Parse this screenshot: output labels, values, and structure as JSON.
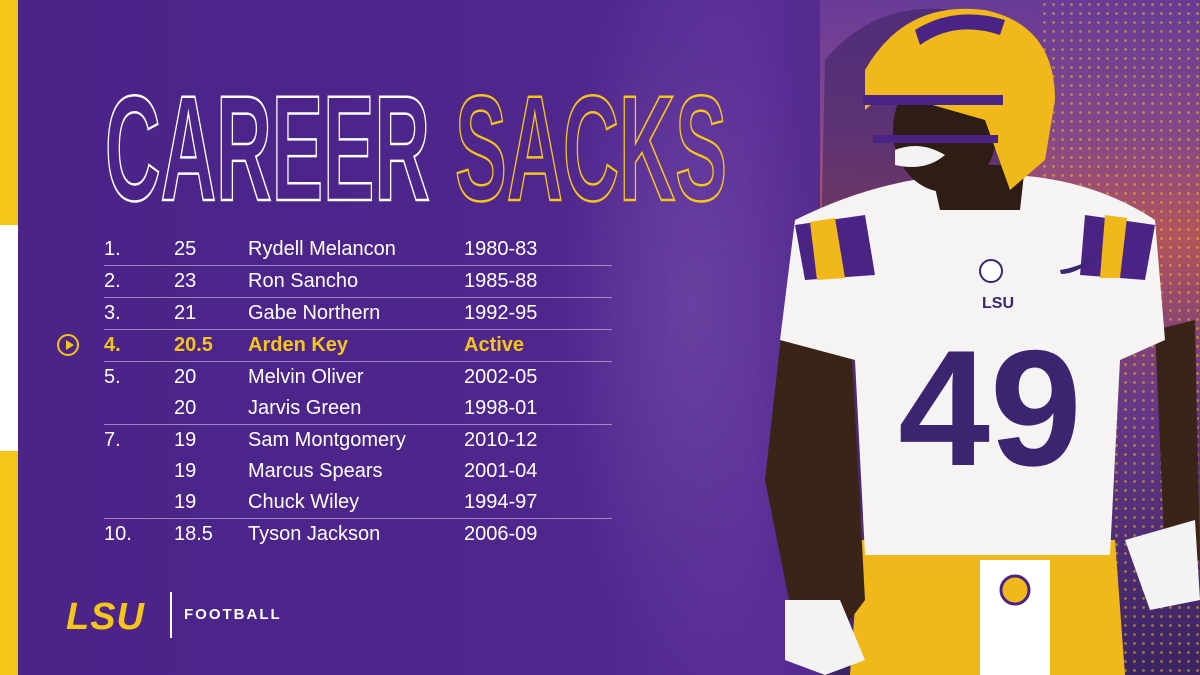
{
  "title": {
    "word1": "CAREER",
    "word2": "SACKS"
  },
  "colors": {
    "purple": "#4b2488",
    "gold": "#f5c518",
    "white": "#ffffff"
  },
  "rows": [
    {
      "rank": "1.",
      "sacks": "25",
      "name": "Rydell Melancon",
      "years": "1980-83"
    },
    {
      "rank": "2.",
      "sacks": "23",
      "name": "Ron Sancho",
      "years": "1985-88"
    },
    {
      "rank": "3.",
      "sacks": "21",
      "name": "Gabe Northern",
      "years": "1992-95"
    },
    {
      "rank": "4.",
      "sacks": "20.5",
      "name": "Arden Key",
      "years": "Active"
    },
    {
      "rank": "5.",
      "sacks": "20",
      "name": "Melvin Oliver",
      "years": "2002-05"
    },
    {
      "rank": "",
      "sacks": "20",
      "name": "Jarvis Green",
      "years": "1998-01"
    },
    {
      "rank": "7.",
      "sacks": "19",
      "name": "Sam Montgomery",
      "years": "2010-12"
    },
    {
      "rank": "",
      "sacks": "19",
      "name": "Marcus Spears",
      "years": "2001-04"
    },
    {
      "rank": "",
      "sacks": "19",
      "name": "Chuck Wiley",
      "years": "1994-97"
    },
    {
      "rank": "10.",
      "sacks": "18.5",
      "name": "Tyson Jackson",
      "years": "2006-09"
    }
  ],
  "branding": {
    "logo": "LSU",
    "label": "FOOTBALL"
  },
  "player": {
    "jersey_number": "49",
    "chest_logo": "LSU"
  },
  "icons": {
    "highlight": "play-circle-icon"
  }
}
